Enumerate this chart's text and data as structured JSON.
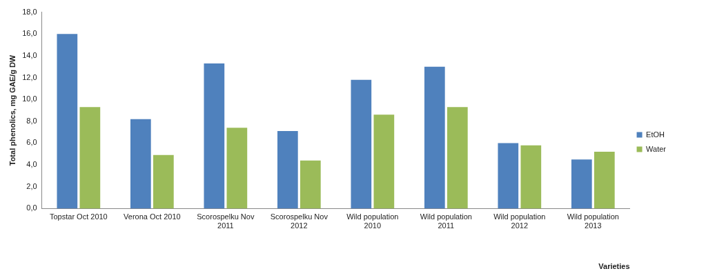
{
  "chart_data": {
    "type": "bar",
    "xlabel": "Varieties",
    "ylabel": "Total phenolics, mg GAE/g DW",
    "categories": [
      "Topstar Oct 2010",
      "Verona Oct 2010",
      "Scorospelku Nov 2011",
      "Scorospelku Nov 2012",
      "Wild population 2010",
      "Wild population 2011",
      "Wild population 2012",
      "Wild population 2013"
    ],
    "series": [
      {
        "name": "EtOH",
        "color": "#4f81bd",
        "values": [
          16.0,
          8.2,
          13.3,
          7.1,
          11.8,
          13.0,
          6.0,
          4.5
        ]
      },
      {
        "name": "Water",
        "color": "#9bbb59",
        "values": [
          9.3,
          4.9,
          7.4,
          4.4,
          8.6,
          9.3,
          5.8,
          5.2
        ]
      }
    ],
    "ylim": [
      0,
      18
    ],
    "yticks": [
      {
        "value": 0,
        "label": "0,0"
      },
      {
        "value": 2,
        "label": "2,0"
      },
      {
        "value": 4,
        "label": "4,0"
      },
      {
        "value": 6,
        "label": "6,0"
      },
      {
        "value": 8,
        "label": "8,0"
      },
      {
        "value": 10,
        "label": "10,0"
      },
      {
        "value": 12,
        "label": "12,0"
      },
      {
        "value": 14,
        "label": "14,0"
      },
      {
        "value": 16,
        "label": "16,0"
      },
      {
        "value": 18,
        "label": "18,0"
      }
    ],
    "grid": false,
    "legend": "right"
  }
}
